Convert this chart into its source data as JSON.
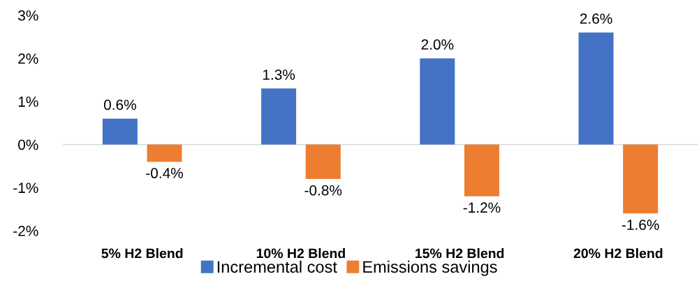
{
  "chart_data": {
    "type": "bar",
    "categories": [
      "5% H2 Blend",
      "10% H2 Blend",
      "15% H2 Blend",
      "20% H2 Blend"
    ],
    "series": [
      {
        "name": "Incremental cost",
        "color": "#4472c4",
        "values": [
          0.6,
          1.3,
          2.0,
          2.6
        ],
        "value_labels": [
          "0.6%",
          "1.3%",
          "2.0%",
          "2.6%"
        ]
      },
      {
        "name": "Emissions savings",
        "color": "#ed7d31",
        "values": [
          -0.4,
          -0.8,
          -1.2,
          -1.6
        ],
        "value_labels": [
          "-0.4%",
          "-0.8%",
          "-1.2%",
          "-1.6%"
        ]
      }
    ],
    "ylim": [
      -2,
      3
    ],
    "yticks": [
      {
        "value": -2,
        "label": "-2%"
      },
      {
        "value": -1,
        "label": "-1%"
      },
      {
        "value": 0,
        "label": "0%"
      },
      {
        "value": 1,
        "label": "1%"
      },
      {
        "value": 2,
        "label": "2%"
      },
      {
        "value": 3,
        "label": "3%"
      }
    ],
    "ref_lines": [
      {
        "axis": "y",
        "value": 0,
        "color": "#d9d9d9"
      }
    ],
    "grid": false,
    "legend": "bottom"
  }
}
